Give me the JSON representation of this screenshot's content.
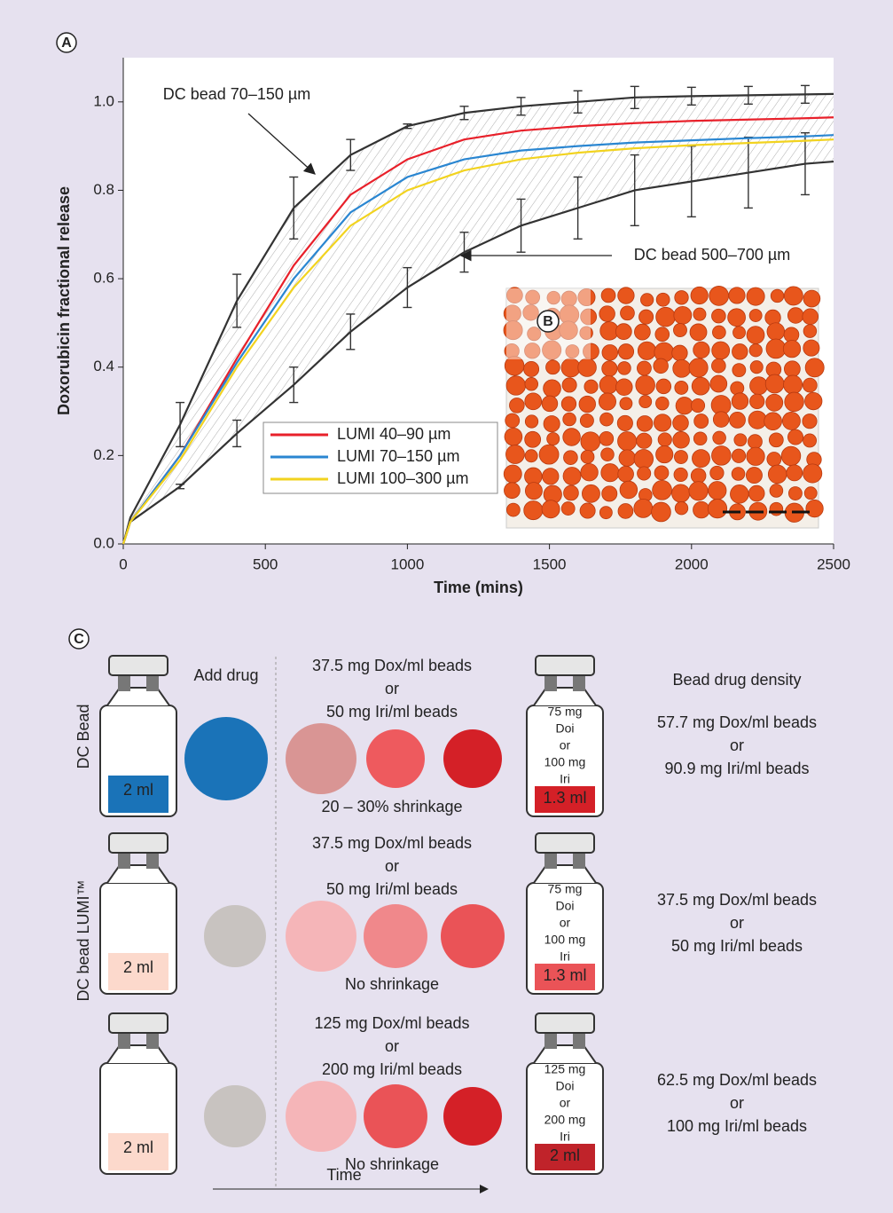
{
  "chart_data": {
    "type": "line",
    "panel_label": "A",
    "x_label": "Time (mins)",
    "y_label": "Doxorubicin fractional release",
    "x": [
      0,
      25,
      200,
      400,
      600,
      800,
      1000,
      1200,
      1400,
      1600,
      1800,
      2000,
      2200,
      2400,
      2500
    ],
    "xlim": [
      0,
      2500
    ],
    "xticks": [
      0,
      500,
      1000,
      1500,
      2000,
      2500
    ],
    "ylim": [
      0,
      1.1
    ],
    "yticks": [
      {
        "value": 0,
        "label": "0.0"
      },
      0.2,
      0.4,
      0.6,
      0.8,
      {
        "value": 1,
        "label": "1.0"
      }
    ],
    "series": [
      {
        "name": "LUMI 40–90 µm",
        "color": "#e8202a",
        "values": [
          0,
          0.05,
          0.2,
          0.42,
          0.63,
          0.79,
          0.87,
          0.915,
          0.935,
          0.945,
          0.952,
          0.957,
          0.96,
          0.963,
          0.965
        ]
      },
      {
        "name": "LUMI 70–150 µm",
        "color": "#2a86d1",
        "values": [
          0,
          0.05,
          0.2,
          0.41,
          0.6,
          0.75,
          0.83,
          0.87,
          0.89,
          0.9,
          0.908,
          0.913,
          0.918,
          0.922,
          0.925
        ]
      },
      {
        "name": "LUMI 100–300 µm",
        "color": "#f2d31f",
        "values": [
          0,
          0.05,
          0.19,
          0.4,
          0.58,
          0.72,
          0.8,
          0.845,
          0.87,
          0.885,
          0.895,
          0.902,
          0.907,
          0.912,
          0.915
        ]
      }
    ],
    "bounds": [
      {
        "name": "DC bead 70–150 µm",
        "color": "#333333",
        "values": [
          0,
          0.06,
          0.27,
          0.55,
          0.76,
          0.88,
          0.945,
          0.975,
          0.99,
          1.0,
          1.01,
          1.013,
          1.015,
          1.017,
          1.018
        ],
        "errors": [
          null,
          null,
          0.05,
          0.06,
          0.07,
          0.035,
          0.005,
          0.015,
          0.02,
          0.025,
          0.025,
          0.02,
          0.02,
          0.02,
          null
        ]
      },
      {
        "name": "DC bead 500–700 µm",
        "color": "#333333",
        "values": [
          0,
          0.05,
          0.13,
          0.25,
          0.36,
          0.48,
          0.58,
          0.66,
          0.72,
          0.76,
          0.8,
          0.82,
          0.84,
          0.86,
          0.865
        ],
        "errors": [
          null,
          null,
          0.005,
          0.03,
          0.04,
          0.04,
          0.045,
          0.045,
          0.06,
          0.07,
          0.08,
          0.08,
          0.08,
          0.07,
          null
        ]
      }
    ],
    "inset_label": "B",
    "legend": "lower-center"
  },
  "panel_c": {
    "label": "C",
    "add_drug": "Add drug",
    "time": "Time",
    "density_header": "Bead drug density",
    "group_labels": [
      "DC Bead",
      "DC bead LUMI™"
    ],
    "rows": [
      {
        "vial_volume": "2 ml",
        "loading": [
          "37.5 mg Dox/ml beads",
          "or",
          "50 mg Iri/ml beads"
        ],
        "shrinkage": "20 – 30% shrinkage",
        "final_vial": [
          "75 mg",
          "Doi",
          "or",
          "100 mg",
          "Iri"
        ],
        "final_volume": "1.3 ml",
        "density": [
          "57.7 mg Dox/ml beads",
          "or",
          "90.9 mg Iri/ml beads"
        ]
      },
      {
        "vial_volume": "2 ml",
        "loading": [
          "37.5 mg Dox/ml beads",
          "or",
          "50 mg Iri/ml beads"
        ],
        "shrinkage": "No shrinkage",
        "final_vial": [
          "75 mg",
          "Doi",
          "or",
          "100 mg",
          "Iri"
        ],
        "final_volume": "1.3 ml",
        "density": [
          "37.5 mg Dox/ml beads",
          "or",
          "50 mg Iri/ml beads"
        ]
      },
      {
        "vial_volume": "2 ml",
        "loading": [
          "125 mg Dox/ml beads",
          "or",
          "200 mg Iri/ml beads"
        ],
        "shrinkage": "No shrinkage",
        "final_vial": [
          "125 mg",
          "Doi",
          "or",
          "200 mg",
          "Iri"
        ],
        "final_volume": "2 ml",
        "density": [
          "62.5 mg Dox/ml beads",
          "or",
          "100 mg Iri/ml beads"
        ]
      }
    ]
  }
}
